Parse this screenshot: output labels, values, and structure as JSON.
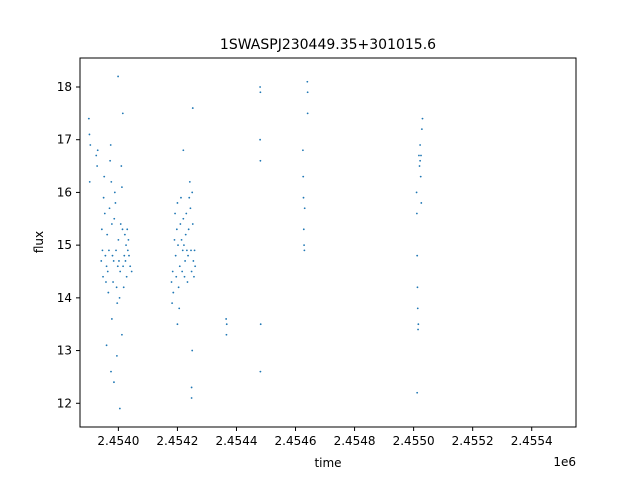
{
  "chart_data": {
    "type": "scatter",
    "title": "1SWASPJ230449.35+301015.6",
    "xlabel": "time",
    "ylabel": "flux",
    "x_offset_label": "1e6",
    "xlim": [
      2453870,
      2455550
    ],
    "ylim": [
      11.55,
      18.55
    ],
    "x_ticks": [
      2454000,
      2454200,
      2454400,
      2454600,
      2454800,
      2455000,
      2455200,
      2455400
    ],
    "x_tick_labels": [
      "2.4540",
      "2.4542",
      "2.4544",
      "2.4546",
      "2.4548",
      "2.4550",
      "2.4552",
      "2.4554"
    ],
    "y_ticks": [
      12,
      13,
      14,
      15,
      16,
      17,
      18
    ],
    "y_tick_labels": [
      "12",
      "13",
      "14",
      "15",
      "16",
      "17",
      "18"
    ],
    "grid": false,
    "marker_color": "#1f77b4",
    "series": [
      {
        "points": [
          [
            2453900,
            17.4
          ],
          [
            2453902,
            17.1
          ],
          [
            2453905,
            16.9
          ],
          [
            2453903,
            16.2
          ],
          [
            2453925,
            16.7
          ],
          [
            2453928,
            16.5
          ],
          [
            2453930,
            16.8
          ],
          [
            2453942,
            14.7
          ],
          [
            2453944,
            15.3
          ],
          [
            2453946,
            14.9
          ],
          [
            2453948,
            14.4
          ],
          [
            2453950,
            15.9
          ],
          [
            2453952,
            16.3
          ],
          [
            2453954,
            15.6
          ],
          [
            2453956,
            14.8
          ],
          [
            2453958,
            14.3
          ],
          [
            2453960,
            14.6
          ],
          [
            2453962,
            15.2
          ],
          [
            2453964,
            14.5
          ],
          [
            2453966,
            14.1
          ],
          [
            2453968,
            14.9
          ],
          [
            2453970,
            15.7
          ],
          [
            2453972,
            16.6
          ],
          [
            2453974,
            16.9
          ],
          [
            2453976,
            16.2
          ],
          [
            2453978,
            15.4
          ],
          [
            2453980,
            14.8
          ],
          [
            2453982,
            14.3
          ],
          [
            2453984,
            14.7
          ],
          [
            2453986,
            15.5
          ],
          [
            2453988,
            16.0
          ],
          [
            2453990,
            15.8
          ],
          [
            2453992,
            14.9
          ],
          [
            2453994,
            14.2
          ],
          [
            2453996,
            13.9
          ],
          [
            2453998,
            14.6
          ],
          [
            2454000,
            15.1
          ],
          [
            2454002,
            14.7
          ],
          [
            2454004,
            14.0
          ],
          [
            2454006,
            14.5
          ],
          [
            2454008,
            15.4
          ],
          [
            2454010,
            16.5
          ],
          [
            2454012,
            16.1
          ],
          [
            2454014,
            15.3
          ],
          [
            2454016,
            14.6
          ],
          [
            2454018,
            14.2
          ],
          [
            2454020,
            14.8
          ],
          [
            2454022,
            15.2
          ],
          [
            2454024,
            14.7
          ],
          [
            2454026,
            15.0
          ],
          [
            2454028,
            14.4
          ],
          [
            2454030,
            15.3
          ],
          [
            2454032,
            14.9
          ],
          [
            2454034,
            15.1
          ],
          [
            2454036,
            14.8
          ],
          [
            2454040,
            14.6
          ],
          [
            2454045,
            14.5
          ],
          [
            2453975,
            12.6
          ],
          [
            2453985,
            12.4
          ],
          [
            2453995,
            12.9
          ],
          [
            2454005,
            11.9
          ],
          [
            2453999,
            18.2
          ],
          [
            2454015,
            17.5
          ],
          [
            2453960,
            13.1
          ],
          [
            2453978,
            13.6
          ],
          [
            2454012,
            13.3
          ],
          [
            2454180,
            14.3
          ],
          [
            2454182,
            13.9
          ],
          [
            2454184,
            14.5
          ],
          [
            2454186,
            14.1
          ],
          [
            2454190,
            15.1
          ],
          [
            2454192,
            15.6
          ],
          [
            2454194,
            14.8
          ],
          [
            2454196,
            14.4
          ],
          [
            2454198,
            15.3
          ],
          [
            2454200,
            15.8
          ],
          [
            2454202,
            15.0
          ],
          [
            2454204,
            14.2
          ],
          [
            2454206,
            13.8
          ],
          [
            2454208,
            14.6
          ],
          [
            2454210,
            15.4
          ],
          [
            2454212,
            15.9
          ],
          [
            2454214,
            15.1
          ],
          [
            2454216,
            14.5
          ],
          [
            2454218,
            14.9
          ],
          [
            2454220,
            15.5
          ],
          [
            2454222,
            15.0
          ],
          [
            2454224,
            14.4
          ],
          [
            2454226,
            14.7
          ],
          [
            2454228,
            15.2
          ],
          [
            2454230,
            15.6
          ],
          [
            2454232,
            14.9
          ],
          [
            2454234,
            14.3
          ],
          [
            2454236,
            14.8
          ],
          [
            2454238,
            15.3
          ],
          [
            2454240,
            15.9
          ],
          [
            2454242,
            16.2
          ],
          [
            2454244,
            15.7
          ],
          [
            2454246,
            14.9
          ],
          [
            2454248,
            14.5
          ],
          [
            2454250,
            16.0
          ],
          [
            2454252,
            15.4
          ],
          [
            2454254,
            14.7
          ],
          [
            2454256,
            14.4
          ],
          [
            2454258,
            14.9
          ],
          [
            2454260,
            14.6
          ],
          [
            2454220,
            16.8
          ],
          [
            2454200,
            13.5
          ],
          [
            2454248,
            12.3
          ],
          [
            2454250,
            13.0
          ],
          [
            2454252,
            17.6
          ],
          [
            2454248,
            12.1
          ],
          [
            2454365,
            13.6
          ],
          [
            2454366,
            13.3
          ],
          [
            2454367,
            13.5
          ],
          [
            2454480,
            18.0
          ],
          [
            2454481,
            17.9
          ],
          [
            2454480,
            17.0
          ],
          [
            2454481,
            16.6
          ],
          [
            2454482,
            13.5
          ],
          [
            2454481,
            12.6
          ],
          [
            2454625,
            16.8
          ],
          [
            2454626,
            16.3
          ],
          [
            2454627,
            15.9
          ],
          [
            2454628,
            15.3
          ],
          [
            2454629,
            15.0
          ],
          [
            2454630,
            14.9
          ],
          [
            2454631,
            15.7
          ],
          [
            2454640,
            18.1
          ],
          [
            2454641,
            17.9
          ],
          [
            2454641,
            17.5
          ],
          [
            2455010,
            16.0
          ],
          [
            2455011,
            15.6
          ],
          [
            2455012,
            14.8
          ],
          [
            2455013,
            14.2
          ],
          [
            2455014,
            13.8
          ],
          [
            2455015,
            13.4
          ],
          [
            2455016,
            13.5
          ],
          [
            2455012,
            12.2
          ],
          [
            2455018,
            16.7
          ],
          [
            2455020,
            16.5
          ],
          [
            2455022,
            16.9
          ],
          [
            2455024,
            16.3
          ],
          [
            2455026,
            15.8
          ],
          [
            2455028,
            17.2
          ],
          [
            2455030,
            17.4
          ],
          [
            2455022,
            16.6
          ],
          [
            2455025,
            16.7
          ]
        ]
      }
    ]
  }
}
